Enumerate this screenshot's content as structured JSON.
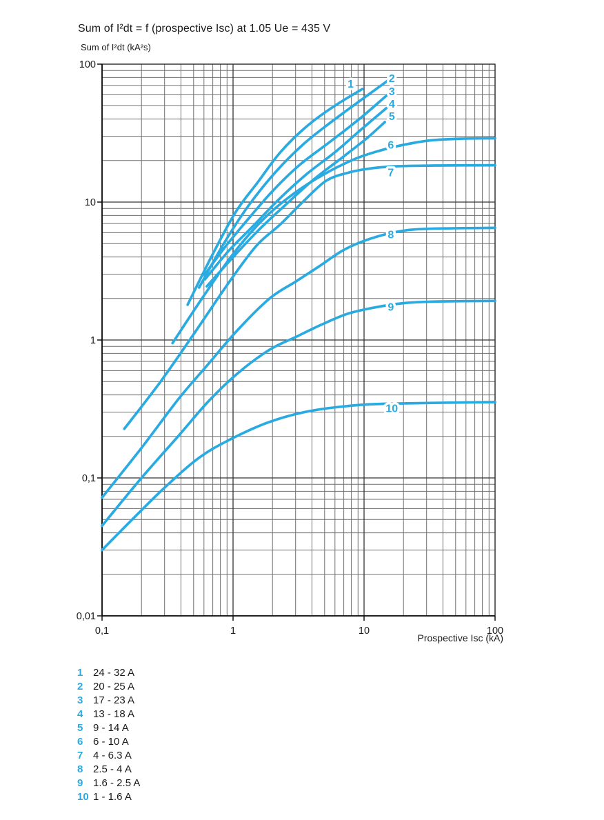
{
  "title": "Sum of I²dt = f (prospective Isc) at 1.05 Ue = 435 V",
  "y_axis_label": "Sum of I²dt (kA²s)",
  "x_axis_label": "Prospective Isc (kA)",
  "colors": {
    "curve": "#29abe2",
    "grid_minor": "#6f6f6f",
    "grid_major": "#333333",
    "axis": "#111111",
    "text": "#1a1a1a"
  },
  "chart_data": {
    "type": "line",
    "x_scale": "log",
    "y_scale": "log",
    "xlim": [
      0.1,
      100
    ],
    "ylim": [
      0.01,
      100
    ],
    "xlabel": "Prospective Isc (kA)",
    "ylabel": "Sum of I²dt (kA²s)",
    "grid": "log minor + major decades",
    "x_ticks": [
      {
        "value": 0.1,
        "label": "0,1"
      },
      {
        "value": 1,
        "label": "1"
      },
      {
        "value": 10,
        "label": "10"
      },
      {
        "value": 100,
        "label": "100"
      }
    ],
    "y_ticks": [
      {
        "value": 0.01,
        "label": "0,01"
      },
      {
        "value": 0.1,
        "label": "0,1"
      },
      {
        "value": 1,
        "label": "1"
      },
      {
        "value": 10,
        "label": "10"
      },
      {
        "value": 100,
        "label": "100"
      }
    ],
    "series": [
      {
        "id": "1",
        "name": "24 - 32 A",
        "label_at": [
          7.9,
          72
        ],
        "points": [
          [
            0.45,
            1.8
          ],
          [
            0.7,
            4.2
          ],
          [
            1.05,
            8.5
          ],
          [
            1.55,
            14
          ],
          [
            2.3,
            23
          ],
          [
            3.6,
            35
          ],
          [
            5.8,
            49
          ],
          [
            9.7,
            66
          ]
        ]
      },
      {
        "id": "2",
        "name": "20 - 25 A",
        "label_at": [
          16.3,
          79
        ],
        "points": [
          [
            0.55,
            2.4
          ],
          [
            0.85,
            5.0
          ],
          [
            1.3,
            9.3
          ],
          [
            2.1,
            16.4
          ],
          [
            3.4,
            26
          ],
          [
            5.6,
            38
          ],
          [
            9.5,
            55
          ],
          [
            15.2,
            76
          ]
        ]
      },
      {
        "id": "3",
        "name": "17 - 23 A",
        "label_at": [
          16.3,
          63.5
        ],
        "points": [
          [
            0.61,
            3.0
          ],
          [
            0.88,
            4.8
          ],
          [
            1.3,
            7.5
          ],
          [
            2.0,
            12
          ],
          [
            3.2,
            18.5
          ],
          [
            5.4,
            27
          ],
          [
            9.2,
            40
          ],
          [
            15.1,
            60
          ]
        ]
      },
      {
        "id": "4",
        "name": "13 - 18 A",
        "label_at": [
          16.3,
          51.5
        ],
        "points": [
          [
            0.61,
            2.75
          ],
          [
            0.92,
            4.4
          ],
          [
            1.4,
            6.6
          ],
          [
            2.2,
            10.3
          ],
          [
            3.6,
            15.8
          ],
          [
            6,
            23
          ],
          [
            10,
            35
          ],
          [
            14.8,
            48
          ]
        ]
      },
      {
        "id": "5",
        "name": "9 - 14 A",
        "label_at": [
          16.3,
          42
        ],
        "points": [
          [
            0.63,
            2.45
          ],
          [
            0.98,
            3.9
          ],
          [
            1.55,
            6.2
          ],
          [
            2.5,
            9.5
          ],
          [
            4.1,
            14.5
          ],
          [
            6.8,
            21
          ],
          [
            10.5,
            29
          ],
          [
            14.4,
            38
          ]
        ]
      },
      {
        "id": "6",
        "name": "6 - 10 A",
        "label_at": [
          16,
          26
        ],
        "points": [
          [
            0.345,
            0.95
          ],
          [
            0.6,
            2.1
          ],
          [
            1.0,
            4.2
          ],
          [
            1.7,
            7.5
          ],
          [
            2.9,
            11.5
          ],
          [
            5,
            16
          ],
          [
            8.5,
            20.5
          ],
          [
            13,
            23.5
          ],
          [
            20,
            26
          ],
          [
            32,
            28
          ],
          [
            55,
            28.8
          ],
          [
            100,
            29
          ]
        ]
      },
      {
        "id": "7",
        "name": "4 - 6.3 A",
        "label_at": [
          16,
          16.4
        ],
        "points": [
          [
            0.148,
            0.227
          ],
          [
            0.28,
            0.5
          ],
          [
            0.5,
            1.1
          ],
          [
            0.9,
            2.5
          ],
          [
            1.5,
            4.8
          ],
          [
            2.3,
            6.9
          ],
          [
            3.4,
            10
          ],
          [
            5.1,
            14.2
          ],
          [
            7.5,
            16.3
          ],
          [
            11,
            17.5
          ],
          [
            18,
            18.2
          ],
          [
            35,
            18.4
          ],
          [
            100,
            18.5
          ]
        ]
      },
      {
        "id": "8",
        "name": "2.5 - 4 A",
        "label_at": [
          16,
          5.82
        ],
        "points": [
          [
            0.1,
            0.072
          ],
          [
            0.2,
            0.165
          ],
          [
            0.38,
            0.37
          ],
          [
            0.63,
            0.65
          ],
          [
            1.1,
            1.2
          ],
          [
            1.9,
            2.0
          ],
          [
            3.0,
            2.65
          ],
          [
            4.5,
            3.4
          ],
          [
            7,
            4.5
          ],
          [
            11,
            5.4
          ],
          [
            18,
            6.1
          ],
          [
            30,
            6.4
          ],
          [
            100,
            6.5
          ]
        ]
      },
      {
        "id": "9",
        "name": "1.6 - 2.5 A",
        "label_at": [
          16,
          1.74
        ],
        "points": [
          [
            0.1,
            0.045
          ],
          [
            0.2,
            0.1
          ],
          [
            0.38,
            0.2
          ],
          [
            0.65,
            0.36
          ],
          [
            1.1,
            0.58
          ],
          [
            1.9,
            0.85
          ],
          [
            3.0,
            1.05
          ],
          [
            4.8,
            1.3
          ],
          [
            7.5,
            1.55
          ],
          [
            12,
            1.72
          ],
          [
            20,
            1.85
          ],
          [
            35,
            1.9
          ],
          [
            100,
            1.92
          ]
        ]
      },
      {
        "id": "10",
        "name": "1 - 1.6 A",
        "label_at": [
          16.3,
          0.32
        ],
        "points": [
          [
            0.1,
            0.03
          ],
          [
            0.17,
            0.05
          ],
          [
            0.3,
            0.085
          ],
          [
            0.55,
            0.14
          ],
          [
            0.95,
            0.19
          ],
          [
            1.8,
            0.25
          ],
          [
            3.5,
            0.3
          ],
          [
            7,
            0.33
          ],
          [
            15,
            0.345
          ],
          [
            100,
            0.355
          ]
        ]
      }
    ]
  },
  "legend": [
    {
      "num": "1",
      "label": "24 - 32 A"
    },
    {
      "num": "2",
      "label": "20 - 25 A"
    },
    {
      "num": "3",
      "label": "17 - 23 A"
    },
    {
      "num": "4",
      "label": "13 - 18 A"
    },
    {
      "num": "5",
      "label": "9 - 14 A"
    },
    {
      "num": "6",
      "label": "6 - 10 A"
    },
    {
      "num": "7",
      "label": "4 - 6.3 A"
    },
    {
      "num": "8",
      "label": "2.5 - 4 A"
    },
    {
      "num": "9",
      "label": "1.6 - 2.5 A"
    },
    {
      "num": "10",
      "label": "1 - 1.6 A"
    }
  ]
}
